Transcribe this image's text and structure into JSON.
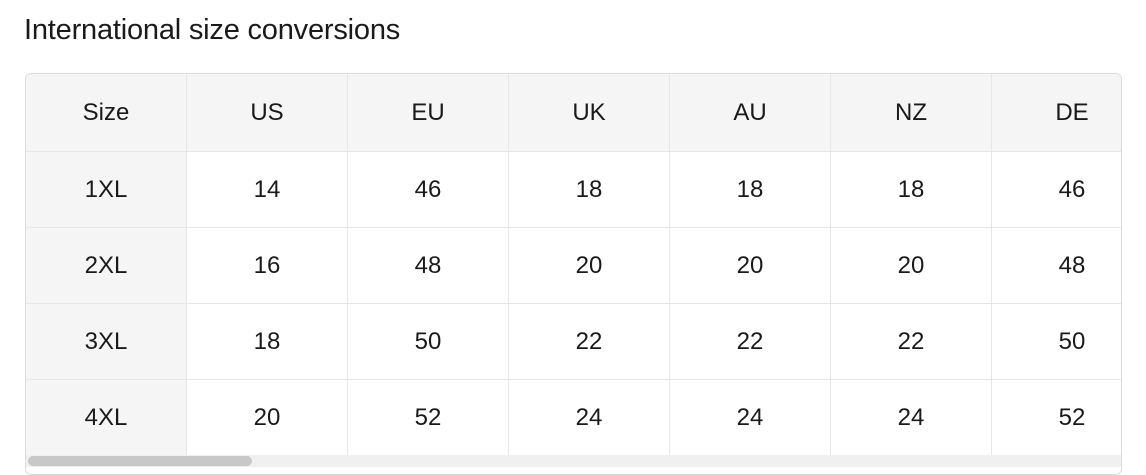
{
  "header": {
    "title": "International size conversions"
  },
  "table": {
    "columns": [
      "Size",
      "US",
      "EU",
      "UK",
      "AU",
      "NZ",
      "DE"
    ],
    "rows": [
      [
        "1XL",
        14,
        46,
        18,
        18,
        18,
        46
      ],
      [
        "2XL",
        16,
        48,
        20,
        20,
        20,
        48
      ],
      [
        "3XL",
        18,
        50,
        22,
        22,
        22,
        50
      ],
      [
        "4XL",
        20,
        52,
        24,
        24,
        24,
        52
      ]
    ]
  }
}
